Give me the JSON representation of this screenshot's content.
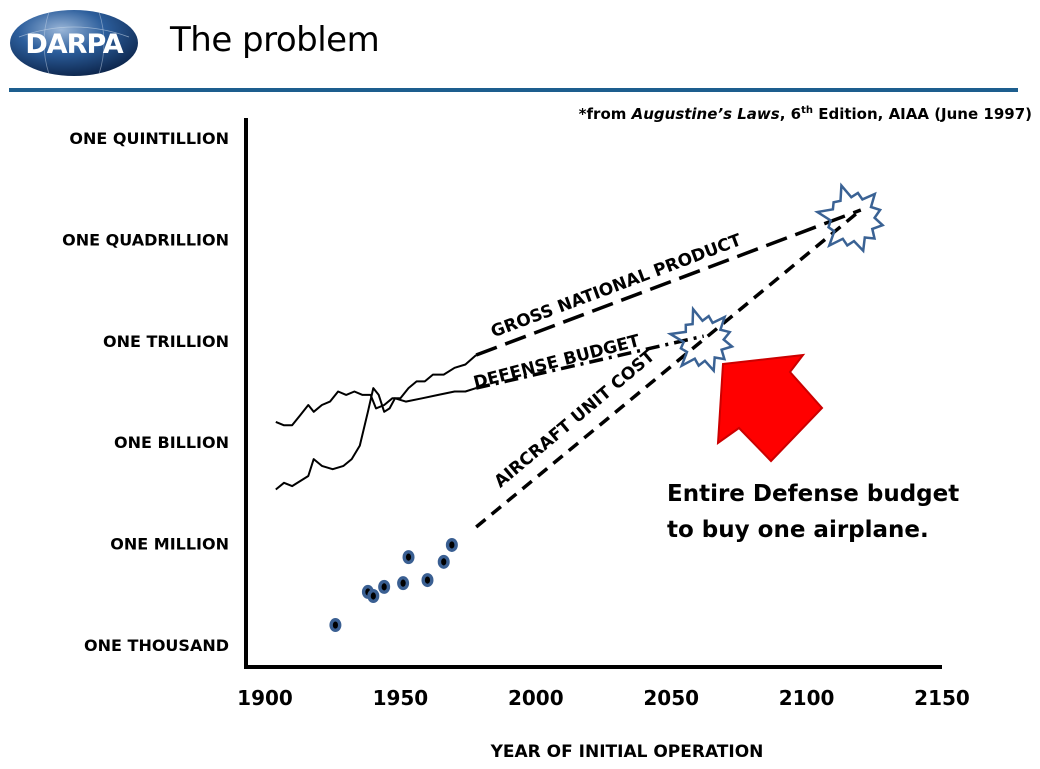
{
  "header": {
    "logo_text": "DARPA",
    "title": "The problem",
    "accent_color": "#1d5e8e"
  },
  "citation": {
    "prefix": "*from ",
    "book": "Augustine’s Laws",
    "edition_num": ", 6",
    "edition_sup": "th",
    "suffix": " Edition, AIAA (June 1997)"
  },
  "callout": {
    "text": "Entire Defense budget to buy one airplane.",
    "arrow_color": "#ff0000"
  },
  "chart_data": {
    "type": "line",
    "title": "",
    "xlabel": "YEAR OF INITIAL OPERATION",
    "ylabel": "",
    "xlim": [
      1900,
      2150
    ],
    "ylim_log10": [
      3,
      18
    ],
    "y_scale": "log",
    "grid": false,
    "x_ticks": [
      1900,
      1950,
      2000,
      2050,
      2100,
      2150
    ],
    "y_ticks": [
      {
        "log10": 18,
        "label": "ONE QUINTILLION"
      },
      {
        "log10": 15,
        "label": "ONE QUADRILLION"
      },
      {
        "log10": 12,
        "label": "ONE TRILLION"
      },
      {
        "log10": 9,
        "label": "ONE BILLION"
      },
      {
        "log10": 6,
        "label": "ONE MILLION"
      },
      {
        "log10": 3,
        "label": "ONE THOUSAND"
      }
    ],
    "series": [
      {
        "name": "GROSS NATIONAL PRODUCT",
        "style": "solid-then-dashed",
        "historical": [
          [
            1904,
            9.6
          ],
          [
            1907,
            9.5
          ],
          [
            1910,
            9.5
          ],
          [
            1913,
            9.8
          ],
          [
            1916,
            10.1
          ],
          [
            1918,
            9.9
          ],
          [
            1921,
            10.1
          ],
          [
            1924,
            10.2
          ],
          [
            1927,
            10.5
          ],
          [
            1930,
            10.4
          ],
          [
            1933,
            10.5
          ],
          [
            1936,
            10.4
          ],
          [
            1939,
            10.4
          ],
          [
            1941,
            10.0
          ],
          [
            1944,
            10.1
          ],
          [
            1947,
            10.3
          ],
          [
            1950,
            10.3
          ],
          [
            1953,
            10.6
          ],
          [
            1956,
            10.8
          ],
          [
            1959,
            10.8
          ],
          [
            1962,
            11.0
          ],
          [
            1966,
            11.0
          ],
          [
            1970,
            11.2
          ],
          [
            1974,
            11.3
          ],
          [
            1978,
            11.58
          ]
        ],
        "projection": [
          [
            1978,
            11.58
          ],
          [
            2120,
            15.87
          ]
        ]
      },
      {
        "name": "DEFENSE BUDGET",
        "style": "solid-then-dashdot",
        "historical": [
          [
            1904,
            7.6
          ],
          [
            1907,
            7.8
          ],
          [
            1910,
            7.7
          ],
          [
            1914,
            7.9
          ],
          [
            1916,
            8.0
          ],
          [
            1918,
            8.5
          ],
          [
            1921,
            8.3
          ],
          [
            1925,
            8.2
          ],
          [
            1929,
            8.3
          ],
          [
            1932,
            8.5
          ],
          [
            1935,
            8.9
          ],
          [
            1938,
            9.9
          ],
          [
            1940,
            10.6
          ],
          [
            1942,
            10.4
          ],
          [
            1944,
            9.9
          ],
          [
            1946,
            10.0
          ],
          [
            1948,
            10.3
          ],
          [
            1952,
            10.2
          ],
          [
            1958,
            10.3
          ],
          [
            1964,
            10.4
          ],
          [
            1970,
            10.5
          ],
          [
            1974,
            10.5
          ],
          [
            1978,
            10.6
          ]
        ],
        "projection": [
          [
            1978,
            10.6
          ],
          [
            2062,
            12.14
          ]
        ]
      },
      {
        "name": "AIRCRAFT UNIT COST",
        "style": "scatter-then-dashed",
        "points": [
          [
            1926,
            3.59
          ],
          [
            1938,
            4.57
          ],
          [
            1940,
            4.45
          ],
          [
            1944,
            4.72
          ],
          [
            1951,
            4.83
          ],
          [
            1953,
            5.6
          ],
          [
            1960,
            4.92
          ],
          [
            1966,
            5.46
          ],
          [
            1969,
            5.96
          ]
        ],
        "projection": [
          [
            1978,
            6.49
          ],
          [
            2120,
            15.87
          ]
        ]
      }
    ],
    "annotations": [
      {
        "type": "starburst",
        "year": 2062,
        "log10": 12.0,
        "meaning": "aircraft cost meets defense budget"
      },
      {
        "type": "starburst",
        "year": 2117,
        "log10": 15.6,
        "meaning": "aircraft cost meets GNP"
      },
      {
        "type": "arrow",
        "points_to": "first starburst"
      },
      {
        "type": "text",
        "text": "Entire Defense budget to buy one airplane."
      }
    ]
  }
}
